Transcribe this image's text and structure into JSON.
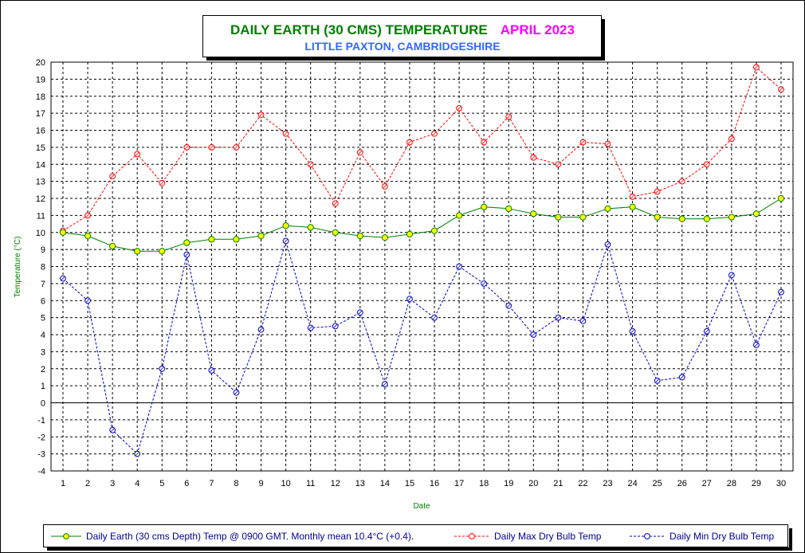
{
  "chart_data": {
    "type": "line",
    "title": "DAILY EARTH (30 CMS) TEMPERATURE",
    "title_date": "APRIL 2023",
    "subtitle": "LITTLE PAXTON, CAMBRIDGESHIRE",
    "xlabel": "Date",
    "ylabel": "Temperature (°C)",
    "ylim": [
      -4,
      20
    ],
    "yticks": [
      -4,
      -3,
      -2,
      -1,
      0,
      1,
      2,
      3,
      4,
      5,
      6,
      7,
      8,
      9,
      10,
      11,
      12,
      13,
      14,
      15,
      16,
      17,
      18,
      19,
      20
    ],
    "x": [
      1,
      2,
      3,
      4,
      5,
      6,
      7,
      8,
      9,
      10,
      11,
      12,
      13,
      14,
      15,
      16,
      17,
      18,
      19,
      20,
      21,
      22,
      23,
      24,
      25,
      26,
      27,
      28,
      29,
      30
    ],
    "grid": true,
    "legend_position": "bottom",
    "series": [
      {
        "name": "Daily Earth (30 cms Depth) Temp @ 0900 GMT. Monthly mean 10.4°C (+0.4).",
        "color": "#008000",
        "marker_fill": "#ffff00",
        "line_style": "solid",
        "values": [
          10.0,
          9.8,
          9.2,
          8.9,
          8.9,
          9.4,
          9.6,
          9.6,
          9.8,
          10.4,
          10.3,
          10.0,
          9.8,
          9.7,
          9.9,
          10.1,
          11.0,
          11.5,
          11.4,
          11.1,
          10.9,
          10.9,
          11.4,
          11.5,
          10.9,
          10.8,
          10.8,
          10.9,
          11.1,
          12.0
        ]
      },
      {
        "name": "Daily Max Dry Bulb Temp",
        "color": "#ff0000",
        "marker_fill": "none",
        "line_style": "dashed",
        "values": [
          10.1,
          11.0,
          13.3,
          14.6,
          12.9,
          15.0,
          15.0,
          15.0,
          16.9,
          15.8,
          14.0,
          11.7,
          14.7,
          12.7,
          15.3,
          15.8,
          17.3,
          15.3,
          16.8,
          14.4,
          14.0,
          15.3,
          15.2,
          12.1,
          12.4,
          13.0,
          14.0,
          15.5,
          19.7,
          18.4
        ]
      },
      {
        "name": "Daily Min Dry Bulb Temp",
        "color": "#0000cc",
        "marker_fill": "none",
        "line_style": "dashed",
        "values": [
          7.3,
          6.0,
          -1.6,
          -3.0,
          2.0,
          8.7,
          1.9,
          0.6,
          4.3,
          9.5,
          4.4,
          4.5,
          5.3,
          1.1,
          6.1,
          5.0,
          8.0,
          7.0,
          5.7,
          4.0,
          5.0,
          4.8,
          9.3,
          4.2,
          1.3,
          1.5,
          4.2,
          7.5,
          3.4,
          6.5
        ]
      }
    ]
  }
}
